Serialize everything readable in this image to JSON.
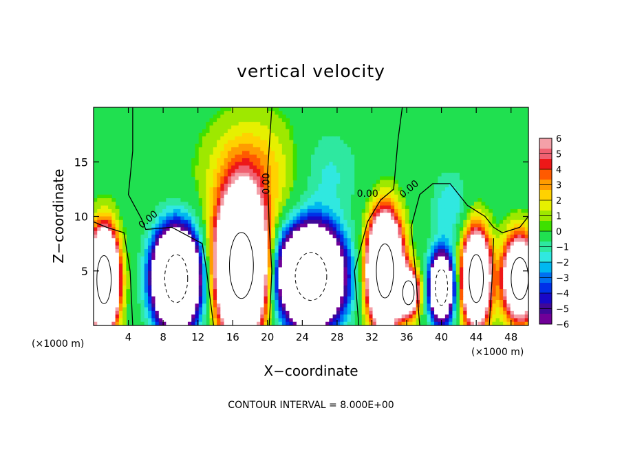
{
  "chart_data": {
    "type": "heatmap",
    "title": "vertical velocity",
    "xlabel": "X−coordinate",
    "ylabel": "Z−coordinate",
    "x_unit_left": "(×1000 m)",
    "x_unit_right": "(×1000 m)",
    "footer": "CONTOUR INTERVAL = 8.000E+00",
    "xlim": [
      0,
      50
    ],
    "ylim": [
      0,
      20
    ],
    "x_ticks": [
      4,
      8,
      12,
      16,
      20,
      24,
      28,
      32,
      36,
      40,
      44,
      48
    ],
    "y_ticks": [
      5,
      10,
      15
    ],
    "colorbar": {
      "range": [
        -6,
        6
      ],
      "ticks": [
        "6",
        "5",
        "4",
        "3",
        "2",
        "1",
        "0",
        "−1",
        "−2",
        "−3",
        "−4",
        "−5",
        "−6"
      ],
      "colors": [
        "#f4a0a8",
        "#f06070",
        "#ee1818",
        "#ff5a00",
        "#ff9c00",
        "#ffd200",
        "#e6f000",
        "#9ee800",
        "#3ee000",
        "#20e050",
        "#2ee8a0",
        "#30e8e0",
        "#00b8f0",
        "#0070f0",
        "#0030e8",
        "#1808c8",
        "#400898",
        "#700098"
      ]
    },
    "contour_labels": [
      "0.00",
      "0.00",
      "0.00",
      "0.00"
    ],
    "background_value": 0,
    "cells": [
      {
        "x": 1.2,
        "z": 4.2,
        "rx": 1.5,
        "rz": 4.0,
        "w": 24
      },
      {
        "x": 9.5,
        "z": 4.3,
        "rx": 2.4,
        "rz": 4.0,
        "w": -24
      },
      {
        "x": 17.0,
        "z": 5.5,
        "rx": 2.5,
        "rz": 5.5,
        "w": 28
      },
      {
        "x": 25.0,
        "z": 4.5,
        "rx": 3.3,
        "rz": 4.0,
        "w": -24
      },
      {
        "x": 33.5,
        "z": 5.0,
        "rx": 1.8,
        "rz": 4.5,
        "w": 24
      },
      {
        "x": 36.2,
        "z": 3.0,
        "rx": 1.2,
        "rz": 2.0,
        "w": 12
      },
      {
        "x": 40.0,
        "z": 3.5,
        "rx": 1.3,
        "rz": 3.0,
        "w": -16
      },
      {
        "x": 44.0,
        "z": 4.3,
        "rx": 1.5,
        "rz": 4.0,
        "w": 18
      },
      {
        "x": 49.0,
        "z": 4.3,
        "rx": 1.8,
        "rz": 3.5,
        "w": 16
      },
      {
        "x": 18.0,
        "z": 14.0,
        "rx": 5.0,
        "rz": 5.0,
        "w": 3
      },
      {
        "x": 27.0,
        "z": 14.0,
        "rx": 3.5,
        "rz": 4.0,
        "w": -1.5
      },
      {
        "x": 41.0,
        "z": 11.0,
        "rx": 2.0,
        "rz": 3.0,
        "w": -2
      }
    ]
  }
}
